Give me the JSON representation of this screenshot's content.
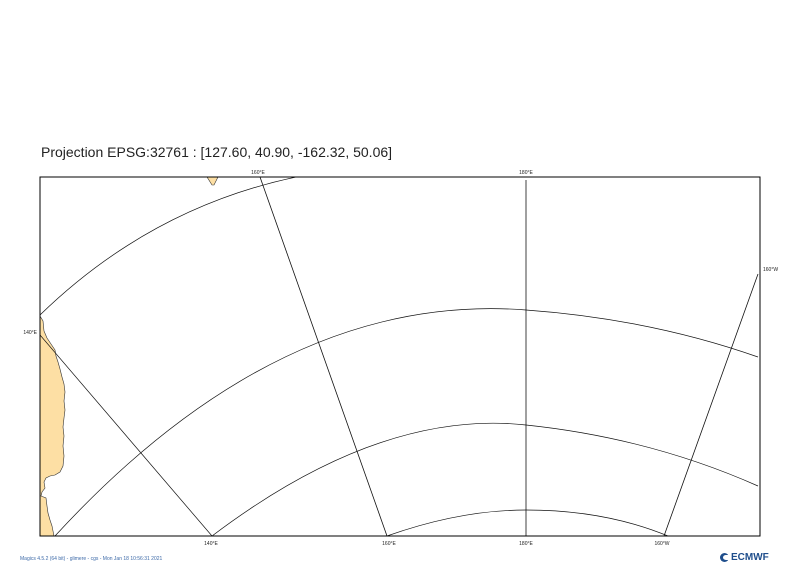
{
  "title": "Projection EPSG:32761 : [127.60, 40.90, -162.32, 50.06]",
  "colors": {
    "land": "#fddfa4",
    "coastline": "#333333",
    "grid": "#111111",
    "frame": "#000000",
    "footer_text": "#3d6aa8",
    "logo": "#1f4e8c"
  },
  "labels": {
    "top_160e": "160°E",
    "top_180e": "180°E",
    "left_140e": "140°E",
    "right_160w": "160°W",
    "bottom_140e": "140°E",
    "bottom_160e": "160°E",
    "bottom_180e": "180°E",
    "bottom_160w": "160°W"
  },
  "footer": {
    "text": "Magics 4.5.2 (64 bit) - glimere - cgs - Mon Jan 18 10:56:31 2021"
  },
  "logo": {
    "text": "ECMWF",
    "icon": "ecmwf-logo-icon"
  }
}
